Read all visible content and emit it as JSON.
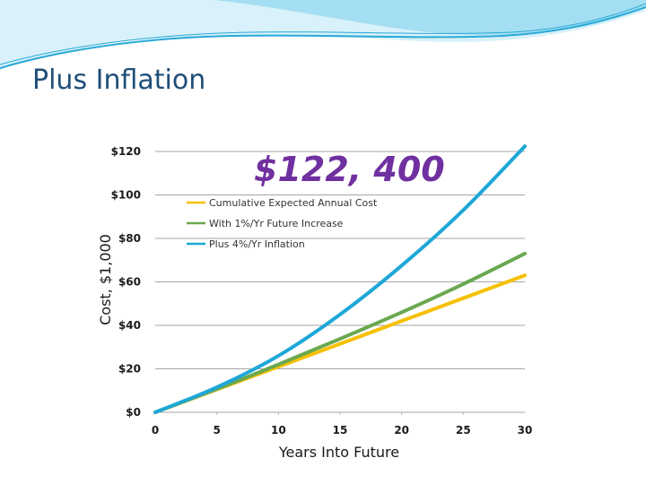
{
  "slide": {
    "title": "Plus Inflation"
  },
  "colors": {
    "title": "#1f4e79",
    "header_wave": "#29a9d6",
    "callout": "#7030a0",
    "grid": "#a6a6a6"
  },
  "chart_data": {
    "type": "line",
    "callout": "$122, 400",
    "xlabel": "Years Into Future",
    "ylabel": "Cost, $1,000",
    "xlim": [
      0,
      30
    ],
    "ylim": [
      0,
      120
    ],
    "x_ticks": [
      "0",
      "5",
      "10",
      "15",
      "20",
      "25",
      "30"
    ],
    "y_ticks": [
      "$0",
      "$20",
      "$40",
      "$60",
      "$80",
      "$100",
      "$120"
    ],
    "grid": "horizontal",
    "legend_position": "upper-left",
    "x": [
      0,
      5,
      10,
      15,
      20,
      25,
      30
    ],
    "series": [
      {
        "name": "Cumulative Expected Annual Cost",
        "color": "#f5c000",
        "values": [
          0,
          10.5,
          21,
          31.5,
          42,
          52.5,
          63
        ]
      },
      {
        "name": "With 1%/Yr Future Increase",
        "color": "#6aa84f",
        "values": [
          0,
          10.7,
          22,
          33.8,
          46,
          59,
          73
        ]
      },
      {
        "name": "Plus 4%/Yr Inflation",
        "color": "#1ea7d8",
        "values": [
          0,
          11.5,
          26,
          45,
          67.5,
          93,
          122.4
        ]
      }
    ]
  }
}
